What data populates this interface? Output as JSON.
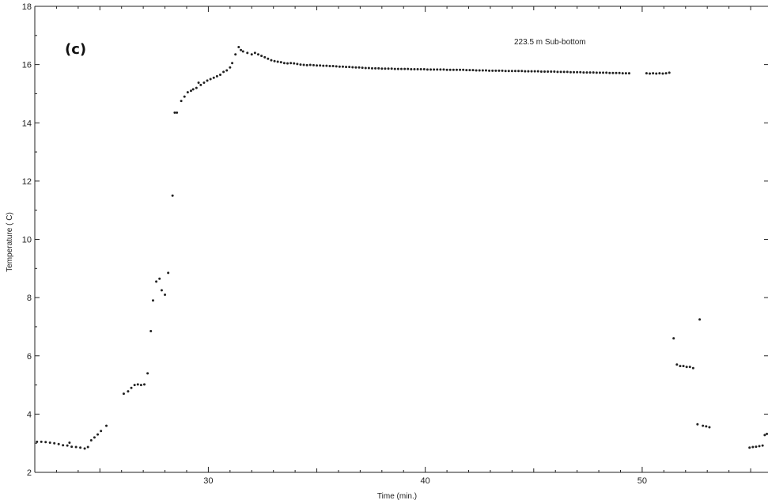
{
  "chart_data": {
    "type": "scatter",
    "panel_label": "(c)",
    "annotation": "223.5 m Sub-bottom",
    "xlabel": "Time (min.)",
    "ylabel": "Temperature ( C)",
    "xlim": [
      22,
      55.8
    ],
    "ylim": [
      2,
      18
    ],
    "xticks": [
      30,
      40,
      50
    ],
    "yticks": [
      2,
      4,
      6,
      8,
      10,
      12,
      14,
      16,
      18
    ],
    "grid": false,
    "series": [
      {
        "marker": "dot",
        "color": "#222222",
        "points": [
          [
            22.1,
            3.05
          ],
          [
            22.3,
            3.05
          ],
          [
            22.5,
            3.04
          ],
          [
            22.7,
            3.02
          ],
          [
            22.9,
            3.0
          ],
          [
            23.1,
            2.97
          ],
          [
            23.3,
            2.93
          ],
          [
            23.5,
            2.92
          ],
          [
            23.6,
            3.02
          ],
          [
            23.7,
            2.88
          ],
          [
            23.9,
            2.87
          ],
          [
            24.1,
            2.85
          ],
          [
            24.3,
            2.82
          ],
          [
            24.45,
            2.87
          ],
          [
            24.6,
            3.1
          ],
          [
            24.75,
            3.2
          ],
          [
            24.9,
            3.3
          ],
          [
            25.05,
            3.42
          ],
          [
            25.3,
            3.6
          ],
          [
            26.1,
            4.7
          ],
          [
            26.3,
            4.78
          ],
          [
            26.45,
            4.9
          ],
          [
            26.6,
            5.0
          ],
          [
            26.75,
            5.02
          ],
          [
            26.9,
            5.0
          ],
          [
            27.05,
            5.02
          ],
          [
            27.2,
            5.4
          ],
          [
            27.35,
            6.85
          ],
          [
            27.45,
            7.9
          ],
          [
            27.6,
            8.55
          ],
          [
            27.75,
            8.65
          ],
          [
            27.85,
            8.25
          ],
          [
            28.0,
            8.1
          ],
          [
            28.15,
            8.85
          ],
          [
            28.35,
            11.5
          ],
          [
            28.45,
            14.35
          ],
          [
            28.55,
            14.35
          ],
          [
            28.75,
            14.75
          ],
          [
            28.9,
            14.9
          ],
          [
            29.05,
            15.05
          ],
          [
            29.2,
            15.1
          ],
          [
            29.3,
            15.15
          ],
          [
            29.45,
            15.2
          ],
          [
            29.55,
            15.38
          ],
          [
            29.65,
            15.3
          ],
          [
            29.8,
            15.38
          ],
          [
            29.95,
            15.45
          ],
          [
            30.1,
            15.5
          ],
          [
            30.25,
            15.55
          ],
          [
            30.4,
            15.6
          ],
          [
            30.55,
            15.65
          ],
          [
            30.7,
            15.75
          ],
          [
            30.85,
            15.8
          ],
          [
            31.0,
            15.9
          ],
          [
            31.1,
            16.05
          ],
          [
            31.25,
            16.35
          ],
          [
            31.4,
            16.6
          ],
          [
            31.5,
            16.5
          ],
          [
            31.6,
            16.45
          ],
          [
            31.8,
            16.4
          ],
          [
            32.0,
            16.35
          ],
          [
            32.15,
            16.4
          ],
          [
            32.3,
            16.35
          ],
          [
            32.45,
            16.3
          ],
          [
            32.6,
            16.25
          ],
          [
            32.75,
            16.2
          ],
          [
            32.9,
            16.15
          ],
          [
            33.05,
            16.12
          ],
          [
            33.2,
            16.1
          ],
          [
            33.35,
            16.08
          ],
          [
            33.5,
            16.05
          ],
          [
            33.65,
            16.04
          ],
          [
            33.8,
            16.05
          ],
          [
            33.95,
            16.04
          ],
          [
            34.1,
            16.02
          ],
          [
            34.25,
            16.0
          ],
          [
            34.4,
            15.99
          ],
          [
            34.55,
            15.98
          ],
          [
            34.7,
            15.99
          ],
          [
            34.85,
            15.98
          ],
          [
            35.0,
            15.97
          ],
          [
            35.15,
            15.97
          ],
          [
            35.3,
            15.96
          ],
          [
            35.45,
            15.96
          ],
          [
            35.6,
            15.95
          ],
          [
            35.75,
            15.95
          ],
          [
            35.9,
            15.94
          ],
          [
            36.05,
            15.93
          ],
          [
            36.2,
            15.93
          ],
          [
            36.35,
            15.92
          ],
          [
            36.5,
            15.92
          ],
          [
            36.65,
            15.91
          ],
          [
            36.8,
            15.9
          ],
          [
            36.95,
            15.9
          ],
          [
            37.1,
            15.89
          ],
          [
            37.25,
            15.88
          ],
          [
            37.4,
            15.88
          ],
          [
            37.55,
            15.87
          ],
          [
            37.7,
            15.87
          ],
          [
            37.85,
            15.87
          ],
          [
            38.0,
            15.86
          ],
          [
            38.15,
            15.86
          ],
          [
            38.3,
            15.86
          ],
          [
            38.45,
            15.86
          ],
          [
            38.6,
            15.85
          ],
          [
            38.75,
            15.85
          ],
          [
            38.9,
            15.85
          ],
          [
            39.05,
            15.85
          ],
          [
            39.2,
            15.85
          ],
          [
            39.35,
            15.84
          ],
          [
            39.5,
            15.84
          ],
          [
            39.65,
            15.84
          ],
          [
            39.8,
            15.84
          ],
          [
            39.95,
            15.84
          ],
          [
            40.1,
            15.83
          ],
          [
            40.25,
            15.83
          ],
          [
            40.4,
            15.83
          ],
          [
            40.55,
            15.83
          ],
          [
            40.7,
            15.83
          ],
          [
            40.85,
            15.83
          ],
          [
            41.0,
            15.82
          ],
          [
            41.15,
            15.82
          ],
          [
            41.3,
            15.82
          ],
          [
            41.45,
            15.82
          ],
          [
            41.6,
            15.82
          ],
          [
            41.75,
            15.82
          ],
          [
            41.9,
            15.81
          ],
          [
            42.05,
            15.81
          ],
          [
            42.2,
            15.81
          ],
          [
            42.35,
            15.8
          ],
          [
            42.5,
            15.8
          ],
          [
            42.65,
            15.8
          ],
          [
            42.8,
            15.8
          ],
          [
            42.95,
            15.79
          ],
          [
            43.1,
            15.79
          ],
          [
            43.25,
            15.79
          ],
          [
            43.4,
            15.79
          ],
          [
            43.55,
            15.79
          ],
          [
            43.7,
            15.78
          ],
          [
            43.85,
            15.78
          ],
          [
            44.0,
            15.78
          ],
          [
            44.15,
            15.78
          ],
          [
            44.3,
            15.78
          ],
          [
            44.45,
            15.78
          ],
          [
            44.6,
            15.77
          ],
          [
            44.75,
            15.77
          ],
          [
            44.9,
            15.77
          ],
          [
            45.05,
            15.77
          ],
          [
            45.2,
            15.77
          ],
          [
            45.35,
            15.76
          ],
          [
            45.5,
            15.76
          ],
          [
            45.65,
            15.76
          ],
          [
            45.8,
            15.76
          ],
          [
            45.95,
            15.76
          ],
          [
            46.1,
            15.75
          ],
          [
            46.25,
            15.75
          ],
          [
            46.4,
            15.75
          ],
          [
            46.55,
            15.75
          ],
          [
            46.7,
            15.74
          ],
          [
            46.85,
            15.74
          ],
          [
            47.0,
            15.74
          ],
          [
            47.15,
            15.74
          ],
          [
            47.3,
            15.73
          ],
          [
            47.45,
            15.73
          ],
          [
            47.6,
            15.73
          ],
          [
            47.75,
            15.73
          ],
          [
            47.9,
            15.72
          ],
          [
            48.05,
            15.72
          ],
          [
            48.2,
            15.72
          ],
          [
            48.35,
            15.72
          ],
          [
            48.5,
            15.71
          ],
          [
            48.65,
            15.71
          ],
          [
            48.8,
            15.71
          ],
          [
            48.95,
            15.71
          ],
          [
            49.1,
            15.7
          ],
          [
            49.25,
            15.7
          ],
          [
            49.4,
            15.7
          ],
          [
            50.2,
            15.7
          ],
          [
            50.35,
            15.69
          ],
          [
            50.5,
            15.7
          ],
          [
            50.65,
            15.69
          ],
          [
            50.8,
            15.7
          ],
          [
            50.95,
            15.69
          ],
          [
            51.1,
            15.7
          ],
          [
            51.25,
            15.72
          ],
          [
            51.45,
            6.6
          ],
          [
            51.6,
            5.7
          ],
          [
            51.75,
            5.65
          ],
          [
            51.9,
            5.65
          ],
          [
            52.05,
            5.62
          ],
          [
            52.2,
            5.62
          ],
          [
            52.35,
            5.58
          ],
          [
            52.55,
            3.65
          ],
          [
            52.65,
            7.25
          ],
          [
            52.8,
            3.6
          ],
          [
            52.95,
            3.58
          ],
          [
            53.1,
            3.55
          ],
          [
            54.95,
            2.85
          ],
          [
            55.1,
            2.87
          ],
          [
            55.25,
            2.88
          ],
          [
            55.4,
            2.9
          ],
          [
            55.55,
            2.92
          ],
          [
            55.65,
            3.28
          ],
          [
            55.75,
            3.32
          ]
        ]
      }
    ]
  }
}
